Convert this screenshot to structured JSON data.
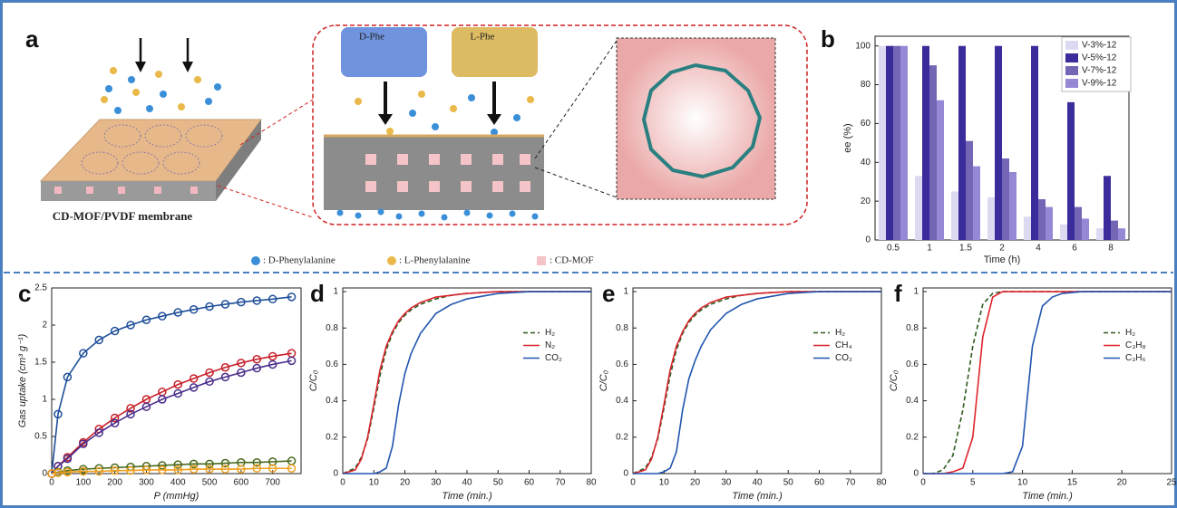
{
  "diagram": {
    "label": "a",
    "membrane_caption": "CD-MOF/PVDF membrane",
    "d_box": "D-Phe",
    "l_box": "L-Phe",
    "legend": [
      ": D-Phenylalanine",
      ": L-Phenylalanine",
      ": CD-MOF"
    ]
  },
  "chart_data": [
    {
      "type": "bar",
      "panel_label": "b",
      "xlabel": "Time (h)",
      "ylabel": "ee (%)",
      "categories": [
        "0.5",
        "1",
        "1.5",
        "2",
        "4",
        "6",
        "8"
      ],
      "series": [
        {
          "name": "V-3%-12",
          "color": "#dcdaf2",
          "values": [
            100,
            33,
            25,
            22,
            12,
            8,
            6
          ]
        },
        {
          "name": "V-5%-12",
          "color": "#3b2c9c",
          "values": [
            100,
            100,
            100,
            100,
            100,
            71,
            33
          ]
        },
        {
          "name": "V-7%-12",
          "color": "#7466b4",
          "values": [
            100,
            90,
            51,
            42,
            21,
            17,
            10
          ]
        },
        {
          "name": "V-9%-12",
          "color": "#9788d6",
          "values": [
            100,
            72,
            38,
            35,
            17,
            11,
            6
          ]
        }
      ],
      "ylim": [
        0,
        105
      ],
      "yticks": [
        0,
        20,
        40,
        60,
        80,
        100
      ],
      "legend": "upper right"
    },
    {
      "type": "line",
      "panel_label": "c",
      "xlabel": "P (mmHg)",
      "ylabel": "Gas uptake (cm³ g⁻¹)",
      "markers": true,
      "x": [
        0,
        20,
        50,
        100,
        150,
        200,
        250,
        300,
        350,
        400,
        450,
        500,
        550,
        600,
        650,
        700,
        760
      ],
      "series": [
        {
          "color": "#1f4f9a",
          "values": [
            0,
            0.8,
            1.3,
            1.62,
            1.8,
            1.92,
            2.0,
            2.07,
            2.12,
            2.17,
            2.21,
            2.25,
            2.28,
            2.31,
            2.33,
            2.35,
            2.38
          ]
        },
        {
          "color": "#c8202a",
          "values": [
            0,
            0.1,
            0.22,
            0.42,
            0.6,
            0.75,
            0.88,
            1.0,
            1.1,
            1.2,
            1.28,
            1.36,
            1.43,
            1.49,
            1.54,
            1.58,
            1.62
          ]
        },
        {
          "color": "#4b2f8c",
          "values": [
            0,
            0.1,
            0.2,
            0.4,
            0.55,
            0.68,
            0.8,
            0.9,
            1.0,
            1.08,
            1.16,
            1.24,
            1.3,
            1.36,
            1.42,
            1.47,
            1.52
          ]
        },
        {
          "color": "#4a6a1e",
          "values": [
            0,
            0.02,
            0.04,
            0.06,
            0.07,
            0.08,
            0.09,
            0.1,
            0.11,
            0.12,
            0.13,
            0.13,
            0.14,
            0.15,
            0.15,
            0.16,
            0.17
          ]
        },
        {
          "color": "#f0a020",
          "values": [
            0,
            0.01,
            0.02,
            0.03,
            0.03,
            0.04,
            0.04,
            0.05,
            0.05,
            0.05,
            0.06,
            0.06,
            0.06,
            0.06,
            0.07,
            0.07,
            0.07
          ]
        }
      ],
      "xlim": [
        0,
        790
      ],
      "xticks": [
        0,
        100,
        200,
        300,
        400,
        500,
        600,
        700
      ],
      "ylim": [
        0,
        2.5
      ],
      "yticks": [
        0,
        0.5,
        1,
        1.5,
        2,
        2.5
      ]
    },
    {
      "type": "line",
      "panel_label": "d",
      "xlabel": "Time  (min.)",
      "ylabel": "C/C₀",
      "x": [
        0,
        4,
        6,
        8,
        10,
        12,
        14,
        16,
        18,
        20,
        22,
        25,
        30,
        35,
        40,
        50,
        60,
        70,
        80
      ],
      "series": [
        {
          "name": "H₂",
          "color": "#2d5a1e",
          "dashed": true,
          "values": [
            0,
            0.03,
            0.09,
            0.19,
            0.36,
            0.54,
            0.68,
            0.77,
            0.83,
            0.87,
            0.9,
            0.93,
            0.96,
            0.98,
            0.99,
            1,
            1,
            1,
            1
          ]
        },
        {
          "name": "N₂",
          "color": "#d8242c",
          "values": [
            0,
            0.02,
            0.08,
            0.2,
            0.38,
            0.57,
            0.7,
            0.78,
            0.84,
            0.88,
            0.91,
            0.94,
            0.97,
            0.98,
            0.99,
            1,
            1,
            1,
            1
          ]
        },
        {
          "name": "CO₂",
          "color": "#2155b0",
          "values": [
            0,
            0,
            0,
            0,
            0,
            0.01,
            0.03,
            0.15,
            0.38,
            0.55,
            0.66,
            0.77,
            0.88,
            0.93,
            0.96,
            0.99,
            1,
            1,
            1
          ]
        }
      ],
      "xlim": [
        0,
        80
      ],
      "xticks": [
        0,
        10,
        20,
        30,
        40,
        50,
        60,
        70,
        80
      ],
      "ylim": [
        0,
        1.02
      ],
      "yticks": [
        0,
        0.2,
        0.4,
        0.6,
        0.8,
        1
      ],
      "legend": "center right"
    },
    {
      "type": "line",
      "panel_label": "e",
      "xlabel": "Time  (min.)",
      "ylabel": "C/C₀",
      "x": [
        0,
        4,
        6,
        8,
        10,
        12,
        14,
        16,
        18,
        20,
        22,
        25,
        30,
        35,
        40,
        50,
        60,
        70,
        80
      ],
      "series": [
        {
          "name": "H₂",
          "color": "#2d5a1e",
          "dashed": true,
          "values": [
            0,
            0.03,
            0.09,
            0.19,
            0.36,
            0.54,
            0.68,
            0.77,
            0.83,
            0.87,
            0.9,
            0.93,
            0.96,
            0.98,
            0.99,
            1,
            1,
            1,
            1
          ]
        },
        {
          "name": "CH₄",
          "color": "#d8242c",
          "values": [
            0,
            0.02,
            0.08,
            0.2,
            0.38,
            0.57,
            0.7,
            0.78,
            0.84,
            0.88,
            0.91,
            0.94,
            0.97,
            0.98,
            0.99,
            1,
            1,
            1,
            1
          ]
        },
        {
          "name": "CO₂",
          "color": "#2155b0",
          "values": [
            0,
            0,
            0,
            0,
            0.01,
            0.03,
            0.12,
            0.35,
            0.52,
            0.62,
            0.7,
            0.79,
            0.88,
            0.93,
            0.96,
            0.99,
            1,
            1,
            1
          ]
        }
      ],
      "xlim": [
        0,
        80
      ],
      "xticks": [
        0,
        10,
        20,
        30,
        40,
        50,
        60,
        70,
        80
      ],
      "ylim": [
        0,
        1.02
      ],
      "yticks": [
        0,
        0.2,
        0.4,
        0.6,
        0.8,
        1
      ],
      "legend": "center right"
    },
    {
      "type": "line",
      "panel_label": "f",
      "xlabel": "Time  (min.)",
      "ylabel": "C/C₀",
      "x": [
        0,
        1,
        2,
        3,
        4,
        5,
        6,
        7,
        8,
        9,
        10,
        11,
        12,
        13,
        14,
        16,
        20,
        25
      ],
      "series": [
        {
          "name": "H₂",
          "color": "#2d5a1e",
          "dashed": true,
          "values": [
            0,
            0,
            0.02,
            0.1,
            0.35,
            0.7,
            0.93,
            0.99,
            1,
            1,
            1,
            1,
            1,
            1,
            1,
            1,
            1,
            1
          ]
        },
        {
          "name": "C₃H₈",
          "color": "#e0242c",
          "values": [
            0,
            0,
            0,
            0.01,
            0.03,
            0.2,
            0.75,
            0.97,
            1,
            1,
            1,
            1,
            1,
            1,
            1,
            1,
            1,
            1
          ]
        },
        {
          "name": "C₃H₆",
          "color": "#2155b0",
          "values": [
            0,
            0,
            0,
            0,
            0,
            0,
            0,
            0,
            0,
            0.01,
            0.15,
            0.7,
            0.92,
            0.97,
            0.99,
            1,
            1,
            1
          ]
        }
      ],
      "xlim": [
        0,
        25
      ],
      "xticks": [
        0,
        5,
        10,
        15,
        20,
        25
      ],
      "ylim": [
        0,
        1.02
      ],
      "yticks": [
        0,
        0.2,
        0.4,
        0.6,
        0.8,
        1
      ],
      "legend": "center right"
    }
  ]
}
